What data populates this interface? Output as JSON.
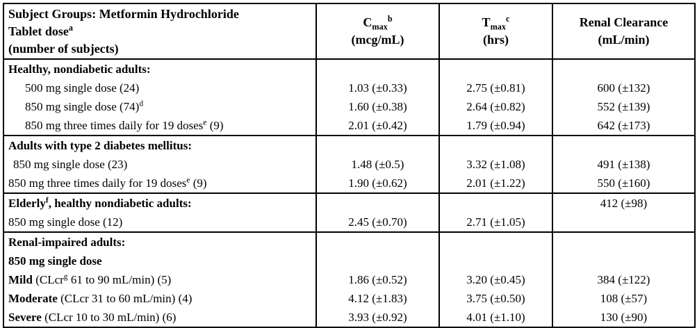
{
  "table": {
    "subject_header": {
      "line1": "Subject Groups: Metformin Hydrochloride",
      "line2_text": "Tablet dose",
      "line2_sup": "a",
      "line3": "(number of subjects)"
    },
    "columns": [
      {
        "symbol": "C",
        "sub": "max",
        "sup": "b",
        "unit": "(mcg/mL)"
      },
      {
        "symbol": "T",
        "sub": "max",
        "sup": "c",
        "unit": "(hrs)"
      },
      {
        "title": "Renal Clearance",
        "unit": "(mL/min)"
      }
    ],
    "rows": [
      {
        "section_start": true,
        "indent": 0,
        "label": "**Healthy, nondiabetic adults:**",
        "cells": [
          "",
          "",
          ""
        ]
      },
      {
        "section_start": false,
        "indent": 2,
        "label": "500 mg single dose (24)",
        "cells": [
          "1.03 (±0.33)",
          "2.75 (±0.81)",
          "600 (±132)"
        ]
      },
      {
        "section_start": false,
        "indent": 2,
        "label": "850 mg single dose (74)^d",
        "cells": [
          "1.60 (±0.38)",
          "2.64 (±0.82)",
          "552 (±139)"
        ]
      },
      {
        "section_start": false,
        "indent": 2,
        "label": "850 mg three times daily for 19 doses^e (9)",
        "cells": [
          "2.01 (±0.42)",
          "1.79 (±0.94)",
          "642 (±173)"
        ]
      },
      {
        "section_start": true,
        "indent": 0,
        "label": "**Adults with type 2 diabetes mellitus:**",
        "cells": [
          "",
          "",
          ""
        ]
      },
      {
        "section_start": false,
        "indent": 1,
        "label": "850 mg single dose (23)",
        "cells": [
          "1.48 (±0.5)",
          "3.32 (±1.08)",
          "491 (±138)"
        ]
      },
      {
        "section_start": false,
        "indent": 0,
        "label": "850 mg three times daily for 19 doses^e (9)",
        "cells": [
          "1.90 (±0.62)",
          "2.01 (±1.22)",
          "550 (±160)"
        ]
      },
      {
        "section_start": true,
        "indent": 0,
        "label": "**Elderly^f, healthy nondiabetic adults:**",
        "cells": [
          "",
          "",
          "412 (±98)"
        ]
      },
      {
        "section_start": false,
        "indent": 0,
        "label": "850 mg single dose (12)",
        "cells": [
          "2.45 (±0.70)",
          "2.71 (±1.05)",
          ""
        ]
      },
      {
        "section_start": true,
        "indent": 0,
        "label": "**Renal-impaired adults:**",
        "cells": [
          "",
          "",
          ""
        ]
      },
      {
        "section_start": false,
        "indent": 0,
        "label": "**850 mg single dose**",
        "cells": [
          "",
          "",
          ""
        ]
      },
      {
        "section_start": false,
        "indent": 0,
        "label": "**Mild** (CLcr^g 61 to 90 mL/min) (5)",
        "cells": [
          "1.86 (±0.52)",
          "3.20 (±0.45)",
          "384 (±122)"
        ]
      },
      {
        "section_start": false,
        "indent": 0,
        "label": "**Moderate** (CLcr 31 to 60 mL/min) (4)",
        "cells": [
          "4.12 (±1.83)",
          "3.75 (±0.50)",
          "108 (±57)"
        ]
      },
      {
        "section_start": false,
        "indent": 0,
        "label": "**Severe** (CLcr 10 to 30 mL/min) (6)",
        "cells": [
          "3.93 (±0.92)",
          "4.01 (±1.10)",
          "130 (±90)"
        ]
      }
    ]
  }
}
